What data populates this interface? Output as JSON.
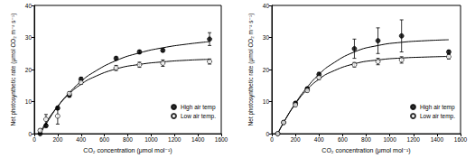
{
  "chart_data": [
    {
      "type": "scatter",
      "xlabel": "CO₂ concentration (μmol mol⁻¹)",
      "ylabel": "Net photosynthetic rate (μmol CO₂ m⁻² s⁻¹)",
      "xlim": [
        0,
        1600
      ],
      "xticks": [
        0,
        200,
        400,
        600,
        800,
        1000,
        1200,
        1400,
        1600
      ],
      "ylim": [
        0,
        40
      ],
      "yticks": [
        0,
        10,
        20,
        30,
        40
      ],
      "legend": "lower right",
      "series": [
        {
          "name": "High air temp",
          "color": "#000000",
          "marker": "filled circle",
          "x": [
            50,
            100,
            200,
            300,
            400,
            700,
            900,
            1100,
            1500
          ],
          "values": [
            0,
            2.5,
            8,
            12,
            17,
            23.5,
            25.5,
            26,
            29.5
          ],
          "errors": [
            0.3,
            0.4,
            0.5,
            0.6,
            0.6,
            0.5,
            0.5,
            0.5,
            2
          ],
          "fit": {
            "x": [
              50,
              100,
              200,
              300,
              400,
              500,
              700,
              900,
              1100,
              1300,
              1500
            ],
            "values": [
              0,
              3,
              8.5,
              12.8,
              16.3,
              19,
              22.8,
              25.2,
              26.8,
              27.9,
              28.7
            ]
          }
        },
        {
          "name": "Low air temp.",
          "color": "#000000",
          "marker": "open circle",
          "x": [
            50,
            100,
            200,
            300,
            400,
            700,
            900,
            1100,
            1500
          ],
          "values": [
            1,
            4.5,
            5.5,
            12.5,
            16,
            20.5,
            21.5,
            22,
            22.5
          ],
          "errors": [
            0.5,
            1.5,
            2.5,
            0.6,
            0.6,
            0.8,
            0.8,
            1,
            0.8
          ],
          "fit": {
            "x": [
              50,
              100,
              200,
              300,
              400,
              500,
              700,
              900,
              1100,
              1300,
              1500
            ],
            "values": [
              0.3,
              3.5,
              8.5,
              12.5,
              15.4,
              17.5,
              20.2,
              21.6,
              22.4,
              22.9,
              23.2
            ]
          }
        }
      ]
    },
    {
      "type": "scatter",
      "xlabel": "CO₂ concentration (μmol mol⁻¹)",
      "ylabel": "Net photosynthetic rate (μmol CO₂ m⁻² s⁻¹)",
      "xlim": [
        0,
        1600
      ],
      "xticks": [
        0,
        200,
        400,
        600,
        800,
        1000,
        1200,
        1400,
        1600
      ],
      "ylim": [
        0,
        40
      ],
      "yticks": [
        0,
        10,
        20,
        30,
        40
      ],
      "legend": "lower right",
      "series": [
        {
          "name": "High air temp",
          "color": "#000000",
          "marker": "filled circle",
          "x": [
            50,
            100,
            200,
            300,
            400,
            700,
            900,
            1100,
            1500
          ],
          "values": [
            0,
            3.5,
            9.5,
            14,
            18.5,
            26.5,
            29,
            30.5,
            25.5
          ],
          "errors": [
            0.3,
            0.4,
            0.5,
            0.5,
            0.6,
            3,
            4,
            5,
            0.5
          ],
          "fit": {
            "x": [
              50,
              100,
              200,
              300,
              400,
              500,
              700,
              900,
              1100,
              1300,
              1500
            ],
            "values": [
              0,
              3.5,
              9.5,
              14.5,
              18.5,
              21.5,
              25.5,
              27.5,
              28.5,
              29,
              29.3
            ]
          }
        },
        {
          "name": "Low air temp.",
          "color": "#000000",
          "marker": "open circle",
          "x": [
            50,
            100,
            200,
            300,
            400,
            700,
            900,
            1100,
            1500
          ],
          "values": [
            0,
            3.5,
            9,
            13.5,
            17.5,
            21.5,
            22.5,
            23,
            24
          ],
          "errors": [
            0.3,
            0.4,
            0.5,
            0.5,
            0.6,
            0.7,
            1,
            1,
            0.7
          ],
          "fit": {
            "x": [
              50,
              100,
              200,
              300,
              400,
              500,
              700,
              900,
              1100,
              1300,
              1500
            ],
            "values": [
              0,
              3.5,
              9.3,
              13.8,
              17,
              19.2,
              21.8,
              23,
              23.6,
              23.9,
              24.1
            ]
          }
        }
      ]
    }
  ]
}
